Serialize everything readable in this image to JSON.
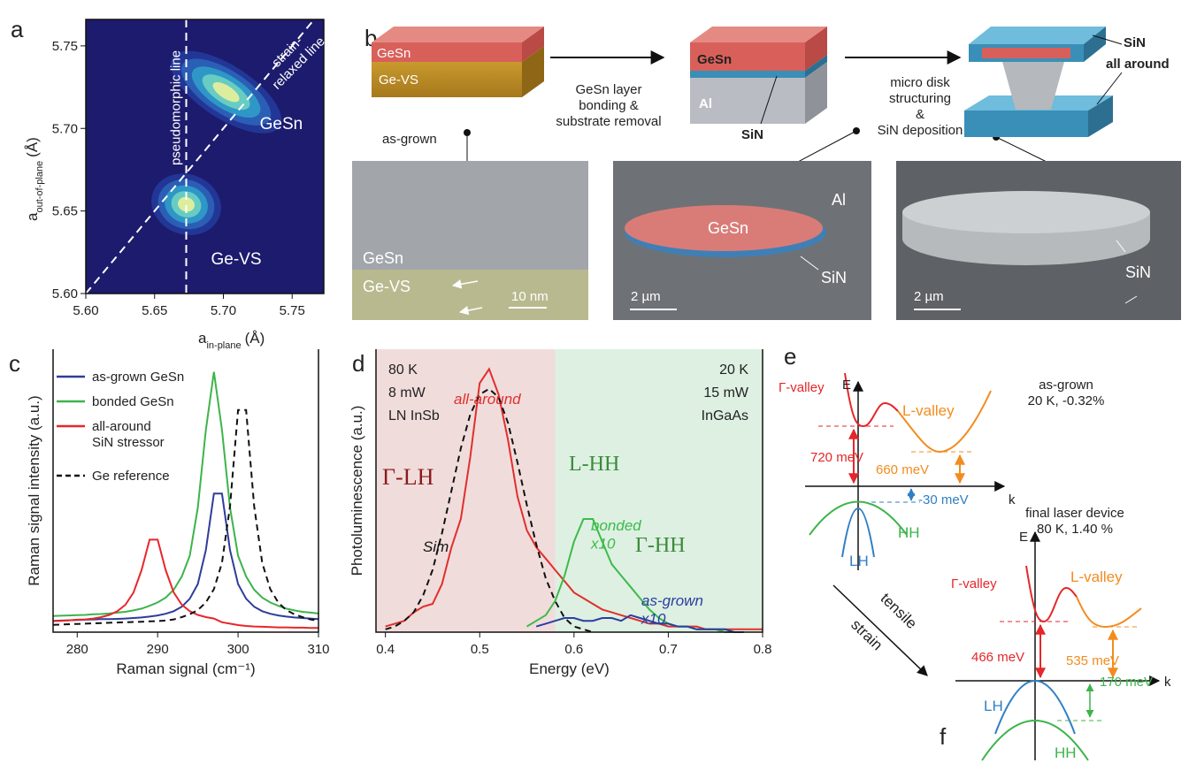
{
  "panel_labels": [
    "a",
    "b",
    "c",
    "d",
    "e",
    "f"
  ],
  "chart_data": [
    {
      "type": "density",
      "xlabel": {
        "symbol": "a",
        "subscript": "in-plane",
        "unit": "(Å)"
      },
      "ylabel": {
        "symbol": "a",
        "subscript": "out-of-plane",
        "unit": "(Å)"
      },
      "xlim": [
        5.6,
        5.773
      ],
      "ylim": [
        5.6,
        5.766
      ],
      "xticks": [
        {
          "value": 5.6,
          "label": "5.60"
        },
        {
          "value": 5.65,
          "label": "5.65"
        },
        {
          "value": 5.7,
          "label": "5.70"
        },
        {
          "value": 5.75,
          "label": "5.75"
        }
      ],
      "yticks": [
        {
          "value": 5.6,
          "label": "5.60"
        },
        {
          "value": 5.65,
          "label": "5.65"
        },
        {
          "value": 5.7,
          "label": "5.70"
        },
        {
          "value": 5.75,
          "label": "5.75"
        }
      ],
      "peaks": [
        {
          "name": "GeSn",
          "x": 5.702,
          "y": 5.722
        },
        {
          "name": "Ge-VS",
          "x": 5.673,
          "y": 5.654
        }
      ],
      "pseudomorphic_x": 5.673,
      "annotations": [
        "pseudomorphic line",
        "strain-\nrelaxed line"
      ]
    },
    {
      "type": "line",
      "xlabel": "Raman signal (cm⁻¹)",
      "ylabel": "Raman signal intensity (a.u.)",
      "xlim": [
        277,
        310
      ],
      "xticks": [
        280,
        290,
        300,
        310
      ],
      "ylim": [
        0,
        1
      ],
      "legend": "upper left",
      "x": [
        277,
        278,
        279,
        280,
        281,
        282,
        283,
        284,
        285,
        286,
        287,
        288,
        289,
        290,
        291,
        292,
        293,
        294,
        295,
        296,
        297,
        298,
        299,
        300,
        301,
        302,
        303,
        304,
        305,
        306,
        307,
        308,
        309,
        310
      ],
      "series": [
        {
          "name": "as-grown GeSn",
          "color": "#2e3d98",
          "dash": false,
          "values": [
            0.04,
            0.041,
            0.042,
            0.043,
            0.044,
            0.045,
            0.046,
            0.046,
            0.047,
            0.048,
            0.05,
            0.052,
            0.055,
            0.059,
            0.065,
            0.074,
            0.09,
            0.118,
            0.17,
            0.29,
            0.49,
            0.49,
            0.29,
            0.17,
            0.118,
            0.09,
            0.074,
            0.065,
            0.059,
            0.055,
            0.052,
            0.05,
            0.048,
            0.046
          ]
        },
        {
          "name": "bonded GeSn",
          "color": "#3cb44a",
          "dash": false,
          "values": [
            0.057,
            0.058,
            0.059,
            0.06,
            0.061,
            0.063,
            0.064,
            0.066,
            0.069,
            0.072,
            0.077,
            0.083,
            0.093,
            0.105,
            0.122,
            0.15,
            0.197,
            0.27,
            0.44,
            0.715,
            0.92,
            0.715,
            0.44,
            0.27,
            0.197,
            0.15,
            0.122,
            0.105,
            0.093,
            0.083,
            0.077,
            0.072,
            0.069,
            0.066
          ]
        },
        {
          "name": "all-around\nSiN stressor",
          "color": "#e8262a",
          "dash": false,
          "values": [
            0.039,
            0.04,
            0.042,
            0.044,
            0.045,
            0.048,
            0.053,
            0.061,
            0.074,
            0.097,
            0.14,
            0.219,
            0.327,
            0.327,
            0.219,
            0.14,
            0.097,
            0.074,
            0.061,
            0.053,
            0.048,
            0.035,
            0.03,
            0.025,
            0.022,
            0.02,
            0.019,
            0.018,
            0.017,
            0.017,
            0.016,
            0.016,
            0.015,
            0.015
          ]
        },
        {
          "name": "Ge reference",
          "color": "#111111",
          "dash": true,
          "values": [
            0.026,
            0.027,
            0.028,
            0.029,
            0.03,
            0.031,
            0.032,
            0.033,
            0.034,
            0.035,
            0.036,
            0.037,
            0.038,
            0.039,
            0.041,
            0.045,
            0.053,
            0.063,
            0.078,
            0.105,
            0.152,
            0.245,
            0.445,
            0.785,
            0.785,
            0.445,
            0.245,
            0.152,
            0.105,
            0.078,
            0.063,
            0.053,
            0.045,
            0.041
          ]
        }
      ]
    },
    {
      "type": "line",
      "xlabel": "Energy (eV)",
      "ylabel": "Photoluminescence (a.u.)",
      "xlim": [
        0.39,
        0.8
      ],
      "xticks": [
        0.4,
        0.5,
        0.6,
        0.7,
        0.8
      ],
      "ylim": [
        0,
        1
      ],
      "split": 0.58,
      "regions": [
        {
          "color": "#f1dcdc",
          "labels": [
            "80 K",
            "8 mW",
            "LN InSb"
          ]
        },
        {
          "color": "#ddf0e2",
          "labels": [
            "20 K",
            "15 mW",
            "InGaAs"
          ]
        }
      ],
      "annotations": [
        {
          "text": "Γ-LH",
          "color": "#8b1a1a"
        },
        {
          "text": "L-HH",
          "color": "#3a8a3a"
        },
        {
          "text": "Γ-HH",
          "color": "#3a8a3a"
        }
      ],
      "series": [
        {
          "name": "all-around",
          "color": "#e0302c",
          "dash": false,
          "x": [
            0.4,
            0.41,
            0.42,
            0.43,
            0.44,
            0.45,
            0.46,
            0.47,
            0.48,
            0.49,
            0.5,
            0.51,
            0.52,
            0.53,
            0.54,
            0.55,
            0.56,
            0.57,
            0.58,
            0.59,
            0.6,
            0.61,
            0.62,
            0.63,
            0.64,
            0.65,
            0.66,
            0.67,
            0.68,
            0.69,
            0.7,
            0.71,
            0.72,
            0.73,
            0.74,
            0.75,
            0.76,
            0.77,
            0.78,
            0.79,
            0.8
          ],
          "values": [
            0.02,
            0.03,
            0.04,
            0.07,
            0.09,
            0.1,
            0.17,
            0.3,
            0.4,
            0.62,
            0.88,
            0.93,
            0.84,
            0.68,
            0.48,
            0.36,
            0.3,
            0.26,
            0.22,
            0.18,
            0.14,
            0.12,
            0.1,
            0.08,
            0.07,
            0.06,
            0.05,
            0.04,
            0.03,
            0.03,
            0.02,
            0.02,
            0.02,
            0.02,
            0.01,
            0.01,
            0.01,
            0.01,
            0.01,
            0.01,
            0.01
          ]
        },
        {
          "name": "bonded\nx10",
          "color": "#3dba4a",
          "dash": false,
          "x": [
            0.55,
            0.56,
            0.57,
            0.58,
            0.59,
            0.6,
            0.61,
            0.62,
            0.63,
            0.64,
            0.65,
            0.66,
            0.67,
            0.68,
            0.69,
            0.7,
            0.71,
            0.72,
            0.73,
            0.74,
            0.75,
            0.76,
            0.77
          ],
          "values": [
            0.02,
            0.04,
            0.06,
            0.11,
            0.2,
            0.32,
            0.4,
            0.4,
            0.32,
            0.24,
            0.2,
            0.16,
            0.12,
            0.08,
            0.05,
            0.03,
            0.02,
            0.02,
            0.01,
            0.01,
            0.01,
            0,
            0
          ]
        },
        {
          "name": "as-grown\nx10",
          "color": "#2a3ea0",
          "dash": false,
          "x": [
            0.56,
            0.57,
            0.58,
            0.59,
            0.6,
            0.61,
            0.62,
            0.63,
            0.64,
            0.65,
            0.66,
            0.67,
            0.68,
            0.69,
            0.7,
            0.71,
            0.72,
            0.73,
            0.74,
            0.75,
            0.76,
            0.77,
            0.78
          ],
          "values": [
            0.02,
            0.03,
            0.04,
            0.05,
            0.05,
            0.04,
            0.04,
            0.05,
            0.05,
            0.04,
            0.06,
            0.05,
            0.04,
            0.03,
            0.03,
            0.02,
            0.02,
            0.01,
            0.01,
            0.01,
            0.01,
            0,
            0
          ]
        },
        {
          "name": "Sim",
          "color": "#111111",
          "dash": true,
          "x": [
            0.4,
            0.41,
            0.42,
            0.43,
            0.44,
            0.45,
            0.46,
            0.47,
            0.48,
            0.49,
            0.5,
            0.51,
            0.52,
            0.53,
            0.54,
            0.55,
            0.56,
            0.57,
            0.58,
            0.59,
            0.6,
            0.61,
            0.62
          ],
          "values": [
            0.01,
            0.02,
            0.04,
            0.07,
            0.13,
            0.22,
            0.35,
            0.5,
            0.65,
            0.77,
            0.84,
            0.86,
            0.83,
            0.74,
            0.6,
            0.45,
            0.31,
            0.19,
            0.11,
            0.05,
            0.02,
            0.01,
            0
          ]
        }
      ]
    }
  ],
  "panel_b": {
    "stack_1": [
      "GeSn",
      "Ge-VS"
    ],
    "as_grown": "as-grown",
    "step_1": "GeSn layer\nbonding &\nsubstrate removal",
    "stack_2": [
      "GeSn",
      "Al",
      "SiN"
    ],
    "step_2": "micro disk\nstructuring\n&\nSiN deposition",
    "stack_3": [
      "SiN",
      "all around"
    ],
    "image_1": [
      "GeSn",
      "Ge-VS",
      "10 nm"
    ],
    "image_2": [
      "Al",
      "GeSn",
      "SiN",
      "2 µm"
    ],
    "image_3": [
      "SiN",
      "2 µm"
    ]
  },
  "panel_e": {
    "axes": [
      "E",
      "k"
    ],
    "valleys": [
      "Γ-valley",
      "L-valley"
    ],
    "condition": "as-grown\n20 K, -0.32%",
    "gaps": [
      "720 meV",
      "660 meV",
      "-30 meV"
    ],
    "bands": [
      "HH",
      "LH"
    ]
  },
  "panel_f": {
    "condition": "final laser device\n80 K, 1.40 %",
    "axes": [
      "E",
      "k"
    ],
    "valleys": [
      "Γ-valley",
      "L-valley"
    ],
    "gaps": [
      "466 meV",
      "535 meV",
      "170 meV"
    ],
    "bands": [
      "LH",
      "HH"
    ]
  },
  "transition": [
    "tensile",
    "strain"
  ]
}
